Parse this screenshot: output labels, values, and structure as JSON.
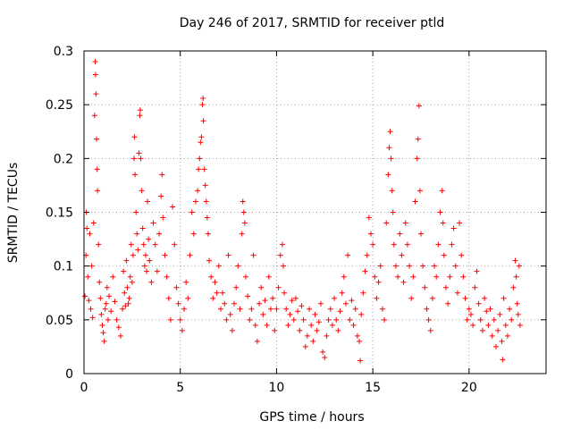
{
  "chart_data": {
    "type": "scatter",
    "title": "Day 246 of 2017, SRMTID for receiver ptld",
    "xlabel": "GPS time / hours",
    "ylabel": "SRMTID / TECUs",
    "xlim": [
      0,
      24
    ],
    "ylim": [
      0,
      0.3
    ],
    "x_ticks": [
      0,
      5,
      10,
      15,
      20
    ],
    "x_tick_labels": [
      "0",
      "5",
      "10",
      "15",
      "20"
    ],
    "y_ticks": [
      0,
      0.05,
      0.1,
      0.15,
      0.2,
      0.25,
      0.3
    ],
    "y_tick_labels": [
      "0",
      "0.05",
      "0.1",
      "0.15",
      "0.2",
      "0.25",
      "0.3"
    ],
    "grid": true,
    "marker": "+",
    "color": "#ff0000",
    "series": [
      {
        "name": "SRMTID",
        "points": [
          [
            0.05,
            0.072
          ],
          [
            0.1,
            0.11
          ],
          [
            0.12,
            0.15
          ],
          [
            0.15,
            0.135
          ],
          [
            0.2,
            0.09
          ],
          [
            0.25,
            0.068
          ],
          [
            0.3,
            0.13
          ],
          [
            0.35,
            0.06
          ],
          [
            0.4,
            0.1
          ],
          [
            0.45,
            0.052
          ],
          [
            0.5,
            0.14
          ],
          [
            0.55,
            0.24
          ],
          [
            0.58,
            0.29
          ],
          [
            0.6,
            0.278
          ],
          [
            0.62,
            0.26
          ],
          [
            0.65,
            0.218
          ],
          [
            0.68,
            0.19
          ],
          [
            0.7,
            0.17
          ],
          [
            0.75,
            0.12
          ],
          [
            0.8,
            0.085
          ],
          [
            0.85,
            0.07
          ],
          [
            0.9,
            0.055
          ],
          [
            0.95,
            0.045
          ],
          [
            1.0,
            0.038
          ],
          [
            1.05,
            0.03
          ],
          [
            1.1,
            0.06
          ],
          [
            1.15,
            0.065
          ],
          [
            1.2,
            0.08
          ],
          [
            1.25,
            0.05
          ],
          [
            1.3,
            0.072
          ],
          [
            1.4,
            0.058
          ],
          [
            1.5,
            0.09
          ],
          [
            1.6,
            0.067
          ],
          [
            1.7,
            0.05
          ],
          [
            1.8,
            0.043
          ],
          [
            1.9,
            0.035
          ],
          [
            2.0,
            0.06
          ],
          [
            2.05,
            0.095
          ],
          [
            2.1,
            0.075
          ],
          [
            2.15,
            0.063
          ],
          [
            2.2,
            0.105
          ],
          [
            2.25,
            0.08
          ],
          [
            2.3,
            0.065
          ],
          [
            2.35,
            0.07
          ],
          [
            2.4,
            0.09
          ],
          [
            2.45,
            0.12
          ],
          [
            2.5,
            0.085
          ],
          [
            2.55,
            0.11
          ],
          [
            2.6,
            0.2
          ],
          [
            2.62,
            0.22
          ],
          [
            2.65,
            0.185
          ],
          [
            2.7,
            0.15
          ],
          [
            2.75,
            0.13
          ],
          [
            2.8,
            0.115
          ],
          [
            2.85,
            0.205
          ],
          [
            2.9,
            0.24
          ],
          [
            2.92,
            0.245
          ],
          [
            2.95,
            0.2
          ],
          [
            3.0,
            0.17
          ],
          [
            3.05,
            0.135
          ],
          [
            3.1,
            0.12
          ],
          [
            3.15,
            0.1
          ],
          [
            3.2,
            0.11
          ],
          [
            3.25,
            0.095
          ],
          [
            3.3,
            0.16
          ],
          [
            3.35,
            0.125
          ],
          [
            3.4,
            0.105
          ],
          [
            3.5,
            0.085
          ],
          [
            3.6,
            0.14
          ],
          [
            3.7,
            0.12
          ],
          [
            3.8,
            0.095
          ],
          [
            3.9,
            0.13
          ],
          [
            4.0,
            0.165
          ],
          [
            4.05,
            0.185
          ],
          [
            4.1,
            0.145
          ],
          [
            4.2,
            0.11
          ],
          [
            4.3,
            0.09
          ],
          [
            4.4,
            0.07
          ],
          [
            4.5,
            0.05
          ],
          [
            4.6,
            0.155
          ],
          [
            4.7,
            0.12
          ],
          [
            4.8,
            0.08
          ],
          [
            4.9,
            0.065
          ],
          [
            5.0,
            0.05
          ],
          [
            5.1,
            0.04
          ],
          [
            5.2,
            0.06
          ],
          [
            5.3,
            0.085
          ],
          [
            5.4,
            0.07
          ],
          [
            5.5,
            0.11
          ],
          [
            5.6,
            0.15
          ],
          [
            5.7,
            0.13
          ],
          [
            5.8,
            0.16
          ],
          [
            5.9,
            0.17
          ],
          [
            5.95,
            0.19
          ],
          [
            6.0,
            0.2
          ],
          [
            6.05,
            0.215
          ],
          [
            6.1,
            0.22
          ],
          [
            6.15,
            0.25
          ],
          [
            6.18,
            0.256
          ],
          [
            6.2,
            0.235
          ],
          [
            6.25,
            0.19
          ],
          [
            6.3,
            0.175
          ],
          [
            6.35,
            0.16
          ],
          [
            6.4,
            0.145
          ],
          [
            6.45,
            0.13
          ],
          [
            6.5,
            0.105
          ],
          [
            6.6,
            0.09
          ],
          [
            6.7,
            0.07
          ],
          [
            6.8,
            0.085
          ],
          [
            6.9,
            0.075
          ],
          [
            7.0,
            0.1
          ],
          [
            7.1,
            0.06
          ],
          [
            7.2,
            0.075
          ],
          [
            7.3,
            0.065
          ],
          [
            7.4,
            0.05
          ],
          [
            7.5,
            0.11
          ],
          [
            7.6,
            0.055
          ],
          [
            7.7,
            0.04
          ],
          [
            7.8,
            0.065
          ],
          [
            7.9,
            0.08
          ],
          [
            8.0,
            0.1
          ],
          [
            8.1,
            0.06
          ],
          [
            8.2,
            0.13
          ],
          [
            8.25,
            0.16
          ],
          [
            8.3,
            0.15
          ],
          [
            8.35,
            0.14
          ],
          [
            8.4,
            0.09
          ],
          [
            8.5,
            0.072
          ],
          [
            8.6,
            0.05
          ],
          [
            8.7,
            0.06
          ],
          [
            8.8,
            0.11
          ],
          [
            8.9,
            0.045
          ],
          [
            9.0,
            0.03
          ],
          [
            9.1,
            0.065
          ],
          [
            9.2,
            0.08
          ],
          [
            9.3,
            0.055
          ],
          [
            9.4,
            0.068
          ],
          [
            9.5,
            0.045
          ],
          [
            9.6,
            0.09
          ],
          [
            9.7,
            0.06
          ],
          [
            9.8,
            0.07
          ],
          [
            9.9,
            0.04
          ],
          [
            10.0,
            0.06
          ],
          [
            10.1,
            0.08
          ],
          [
            10.2,
            0.11
          ],
          [
            10.3,
            0.12
          ],
          [
            10.35,
            0.1
          ],
          [
            10.4,
            0.075
          ],
          [
            10.5,
            0.06
          ],
          [
            10.6,
            0.045
          ],
          [
            10.7,
            0.055
          ],
          [
            10.8,
            0.068
          ],
          [
            10.9,
            0.05
          ],
          [
            11.0,
            0.07
          ],
          [
            11.1,
            0.058
          ],
          [
            11.2,
            0.04
          ],
          [
            11.3,
            0.063
          ],
          [
            11.4,
            0.05
          ],
          [
            11.5,
            0.025
          ],
          [
            11.6,
            0.035
          ],
          [
            11.7,
            0.06
          ],
          [
            11.8,
            0.045
          ],
          [
            11.9,
            0.03
          ],
          [
            12.0,
            0.055
          ],
          [
            12.1,
            0.04
          ],
          [
            12.2,
            0.048
          ],
          [
            12.3,
            0.065
          ],
          [
            12.4,
            0.02
          ],
          [
            12.5,
            0.015
          ],
          [
            12.6,
            0.035
          ],
          [
            12.7,
            0.05
          ],
          [
            12.8,
            0.06
          ],
          [
            12.9,
            0.045
          ],
          [
            13.0,
            0.07
          ],
          [
            13.1,
            0.05
          ],
          [
            13.2,
            0.04
          ],
          [
            13.3,
            0.058
          ],
          [
            13.4,
            0.075
          ],
          [
            13.5,
            0.09
          ],
          [
            13.6,
            0.065
          ],
          [
            13.7,
            0.11
          ],
          [
            13.8,
            0.05
          ],
          [
            13.9,
            0.068
          ],
          [
            14.0,
            0.045
          ],
          [
            14.1,
            0.06
          ],
          [
            14.2,
            0.035
          ],
          [
            14.3,
            0.03
          ],
          [
            14.35,
            0.012
          ],
          [
            14.4,
            0.055
          ],
          [
            14.5,
            0.075
          ],
          [
            14.6,
            0.095
          ],
          [
            14.7,
            0.11
          ],
          [
            14.8,
            0.145
          ],
          [
            14.9,
            0.13
          ],
          [
            15.0,
            0.12
          ],
          [
            15.1,
            0.09
          ],
          [
            15.2,
            0.07
          ],
          [
            15.3,
            0.085
          ],
          [
            15.4,
            0.1
          ],
          [
            15.5,
            0.06
          ],
          [
            15.6,
            0.05
          ],
          [
            15.7,
            0.14
          ],
          [
            15.8,
            0.185
          ],
          [
            15.85,
            0.21
          ],
          [
            15.9,
            0.225
          ],
          [
            15.95,
            0.2
          ],
          [
            16.0,
            0.17
          ],
          [
            16.05,
            0.15
          ],
          [
            16.1,
            0.12
          ],
          [
            16.2,
            0.1
          ],
          [
            16.3,
            0.09
          ],
          [
            16.4,
            0.13
          ],
          [
            16.5,
            0.11
          ],
          [
            16.6,
            0.085
          ],
          [
            16.7,
            0.14
          ],
          [
            16.8,
            0.12
          ],
          [
            16.9,
            0.1
          ],
          [
            17.0,
            0.07
          ],
          [
            17.1,
            0.09
          ],
          [
            17.2,
            0.16
          ],
          [
            17.3,
            0.2
          ],
          [
            17.35,
            0.218
          ],
          [
            17.4,
            0.249
          ],
          [
            17.45,
            0.17
          ],
          [
            17.5,
            0.13
          ],
          [
            17.6,
            0.1
          ],
          [
            17.7,
            0.08
          ],
          [
            17.8,
            0.06
          ],
          [
            17.9,
            0.05
          ],
          [
            18.0,
            0.04
          ],
          [
            18.1,
            0.07
          ],
          [
            18.2,
            0.1
          ],
          [
            18.3,
            0.09
          ],
          [
            18.4,
            0.12
          ],
          [
            18.5,
            0.15
          ],
          [
            18.6,
            0.17
          ],
          [
            18.65,
            0.14
          ],
          [
            18.7,
            0.11
          ],
          [
            18.8,
            0.08
          ],
          [
            18.9,
            0.065
          ],
          [
            19.0,
            0.09
          ],
          [
            19.1,
            0.12
          ],
          [
            19.2,
            0.135
          ],
          [
            19.3,
            0.1
          ],
          [
            19.4,
            0.075
          ],
          [
            19.5,
            0.14
          ],
          [
            19.6,
            0.11
          ],
          [
            19.7,
            0.09
          ],
          [
            19.8,
            0.07
          ],
          [
            19.9,
            0.05
          ],
          [
            20.0,
            0.06
          ],
          [
            20.1,
            0.055
          ],
          [
            20.2,
            0.045
          ],
          [
            20.3,
            0.08
          ],
          [
            20.4,
            0.095
          ],
          [
            20.5,
            0.065
          ],
          [
            20.6,
            0.05
          ],
          [
            20.7,
            0.04
          ],
          [
            20.8,
            0.07
          ],
          [
            20.9,
            0.058
          ],
          [
            21.0,
            0.045
          ],
          [
            21.1,
            0.06
          ],
          [
            21.2,
            0.035
          ],
          [
            21.3,
            0.05
          ],
          [
            21.4,
            0.025
          ],
          [
            21.5,
            0.04
          ],
          [
            21.6,
            0.055
          ],
          [
            21.7,
            0.03
          ],
          [
            21.75,
            0.013
          ],
          [
            21.8,
            0.07
          ],
          [
            21.9,
            0.045
          ],
          [
            22.0,
            0.035
          ],
          [
            22.1,
            0.06
          ],
          [
            22.2,
            0.05
          ],
          [
            22.3,
            0.08
          ],
          [
            22.4,
            0.105
          ],
          [
            22.45,
            0.09
          ],
          [
            22.5,
            0.065
          ],
          [
            22.55,
            0.055
          ],
          [
            22.6,
            0.1
          ],
          [
            22.65,
            0.045
          ]
        ]
      }
    ]
  }
}
